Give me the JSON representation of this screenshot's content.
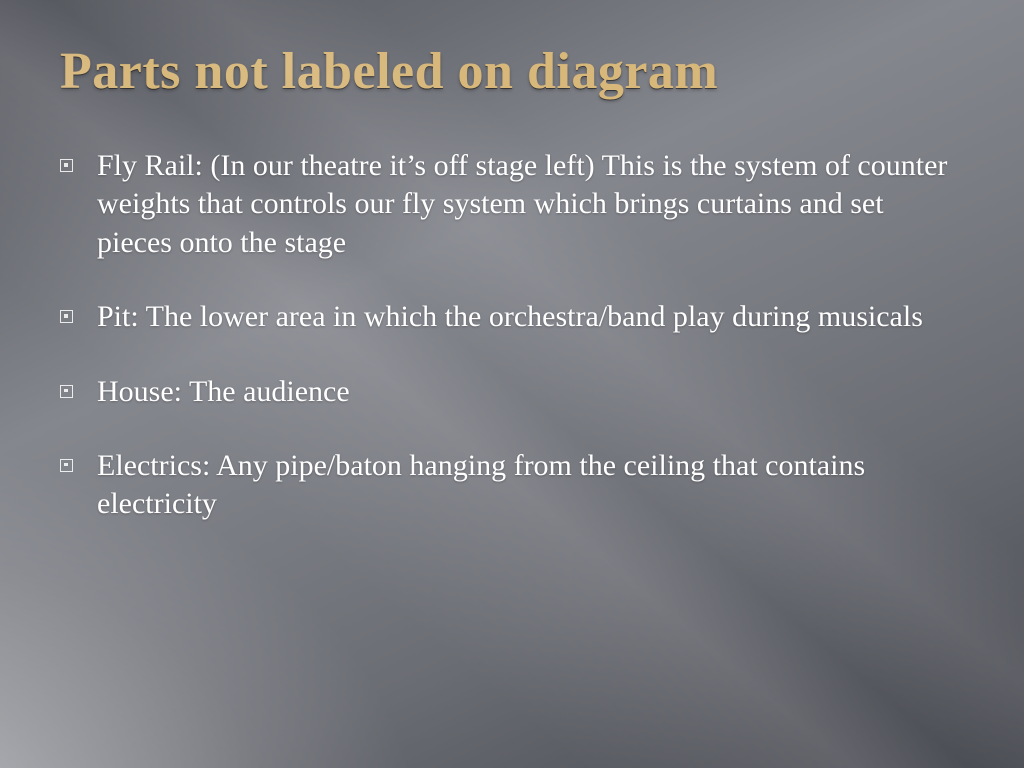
{
  "slide": {
    "title": "Parts not labeled on diagram",
    "title_color": "#d7b77a",
    "text_color": "#ffffff",
    "background_gradient": [
      "#56585f",
      "#85878e",
      "#4a4c53"
    ],
    "font_family": "Palatino Linotype",
    "title_fontsize_pt": 39,
    "body_fontsize_pt": 22,
    "bullets": [
      "Fly Rail: (In our theatre it’s off stage left) This is the system of counter weights that controls our fly system which brings curtains and set pieces onto the stage",
      "Pit: The lower area in which the orchestra/band play during musicals",
      "House: The audience",
      "Electrics: Any pipe/baton hanging from the ceiling that contains electricity"
    ]
  }
}
